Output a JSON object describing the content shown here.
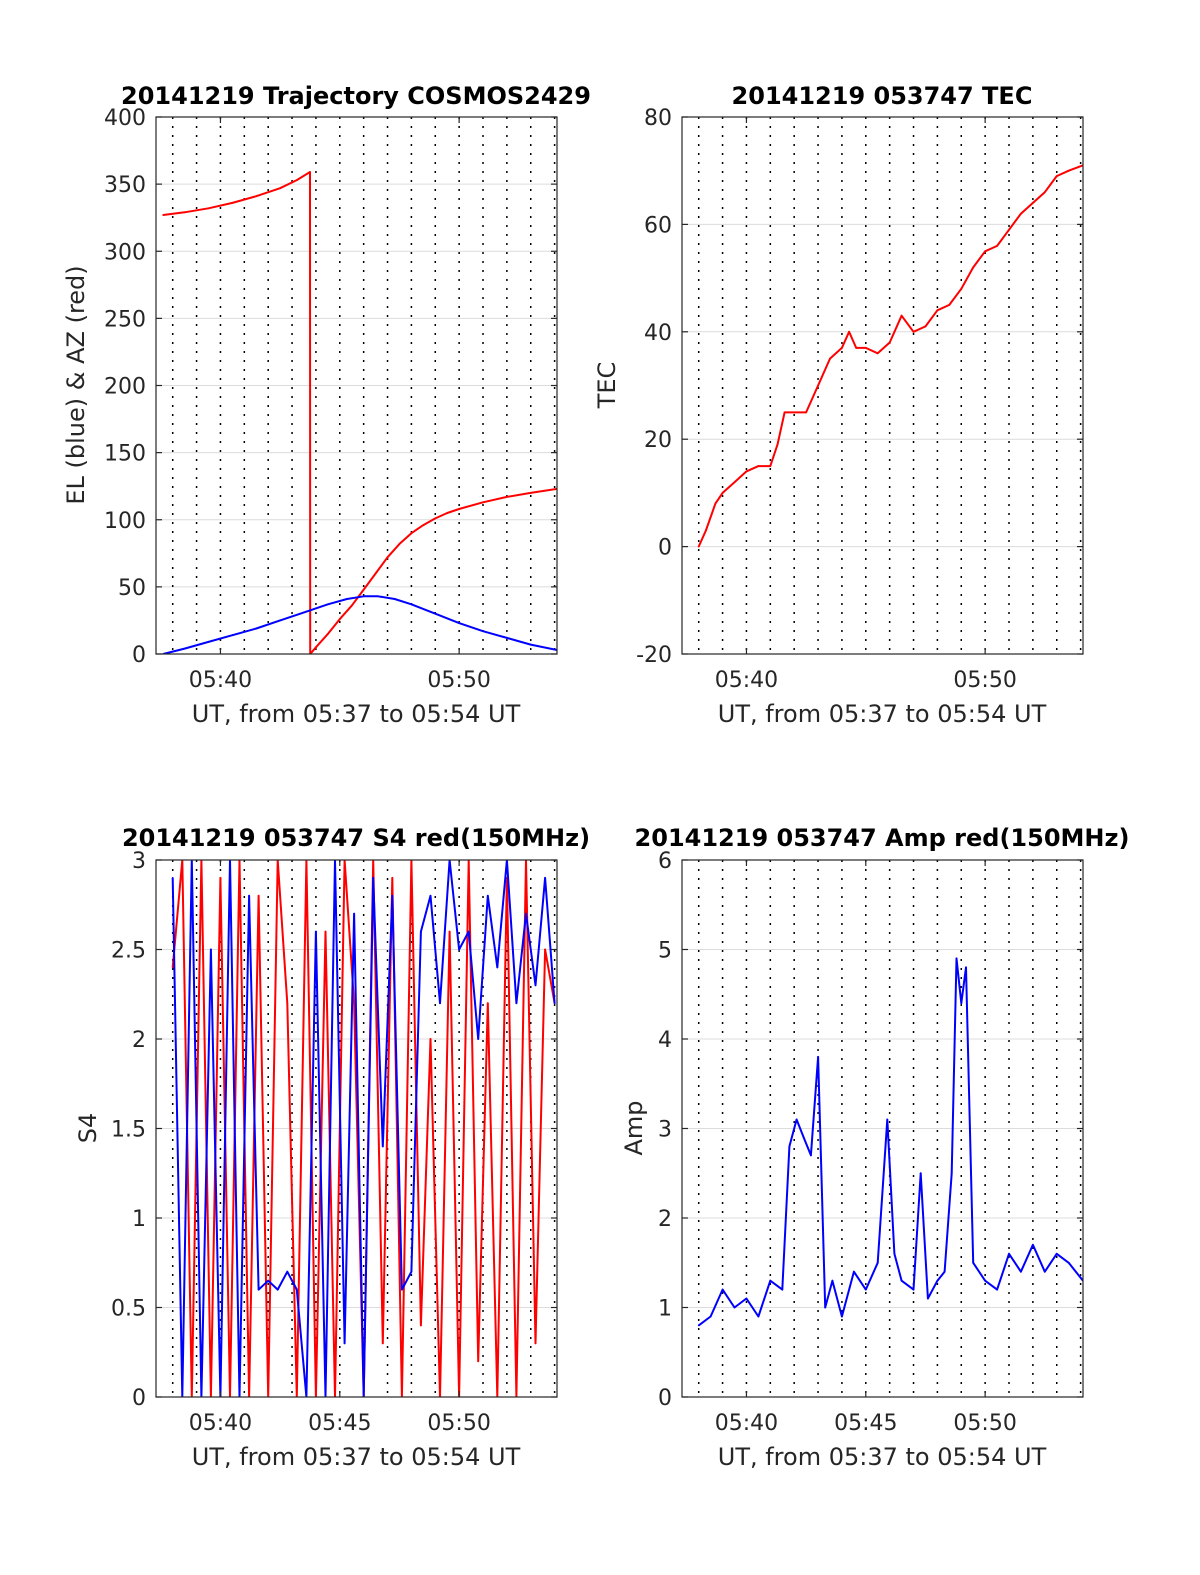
{
  "chart_data": [
    {
      "type": "line",
      "title": "20141219 Trajectory COSMOS2429",
      "xlabel": "UT, from 05:37 to 05:54 UT",
      "ylabel": "EL (blue) & AZ (red)",
      "xlim": [
        37.3,
        54.1
      ],
      "ylim": [
        0,
        400
      ],
      "xticks": [
        40,
        50
      ],
      "xticklabels": [
        "05:40",
        "05:50"
      ],
      "yticks": [
        0,
        50,
        100,
        150,
        200,
        250,
        300,
        350,
        400
      ],
      "grid": true,
      "colors": {
        "AZ": "#ff0000",
        "EL": "#0000ff"
      },
      "series": [
        {
          "x": [
            37.6,
            38.5,
            39.5,
            40.5,
            41.5,
            42.5,
            43.2,
            43.75,
            43.76,
            44.0,
            44.5,
            45.0,
            45.5,
            46.0,
            46.5,
            47.0,
            47.5,
            48.0,
            48.5,
            49.0,
            49.5,
            50.0,
            51.0,
            52.0,
            53.0,
            54.1
          ],
          "values": [
            327,
            329,
            332,
            336,
            341,
            347,
            353,
            359,
            0,
            5,
            15,
            26,
            36,
            48,
            60,
            72,
            82,
            90,
            96,
            101,
            105,
            108,
            113,
            117,
            120,
            123
          ]
        },
        {
          "x": [
            37.6,
            38.5,
            39.5,
            40.5,
            41.5,
            42.5,
            43.5,
            44.5,
            45.3,
            46.0,
            46.6,
            47.3,
            48.0,
            49.0,
            50.0,
            51.0,
            52.0,
            53.0,
            54.1
          ],
          "values": [
            0,
            4,
            9,
            14,
            19,
            25,
            31,
            37,
            41,
            43,
            43,
            41,
            37,
            30,
            23,
            17,
            12,
            7,
            3
          ]
        }
      ]
    },
    {
      "type": "line",
      "title": "20141219 053747 TEC",
      "xlabel": "UT, from 05:37 to 05:54 UT",
      "ylabel": "TEC",
      "xlim": [
        37.3,
        54.1
      ],
      "ylim": [
        -20,
        80
      ],
      "xticks": [
        40,
        50
      ],
      "xticklabels": [
        "05:40",
        "05:50"
      ],
      "yticks": [
        -20,
        0,
        20,
        40,
        60,
        80
      ],
      "grid": true,
      "colors": {
        "TEC": "#ff0000"
      },
      "series": [
        {
          "x": [
            38.0,
            38.3,
            38.7,
            39.0,
            39.5,
            40.0,
            40.5,
            41.0,
            41.3,
            41.6,
            42.0,
            42.5,
            43.0,
            43.5,
            44.0,
            44.3,
            44.6,
            45.0,
            45.5,
            46.0,
            46.5,
            47.0,
            47.5,
            48.0,
            48.5,
            49.0,
            49.5,
            50.0,
            50.5,
            51.0,
            51.5,
            52.0,
            52.5,
            53.0,
            53.5,
            54.1
          ],
          "values": [
            0,
            3,
            8,
            10,
            12,
            14,
            15,
            15,
            19,
            25,
            25,
            25,
            30,
            35,
            37,
            40,
            37,
            37,
            36,
            38,
            43,
            40,
            41,
            44,
            45,
            48,
            52,
            55,
            56,
            59,
            62,
            64,
            66,
            69,
            70,
            71
          ]
        }
      ]
    },
    {
      "type": "line",
      "title": "20141219 053747 S4 red(150MHz)",
      "xlabel": "UT, from 05:37 to 05:54 UT",
      "ylabel": "S4",
      "xlim": [
        37.3,
        54.1
      ],
      "ylim": [
        0,
        3
      ],
      "xticks": [
        40,
        45,
        50
      ],
      "xticklabels": [
        "05:40",
        "05:45",
        "05:50"
      ],
      "yticks": [
        0,
        0.5,
        1,
        1.5,
        2,
        2.5,
        3
      ],
      "grid": true,
      "colors": {
        "red": "#ff0000",
        "blue": "#0000ff"
      },
      "series": [
        {
          "x": [
            38.0,
            38.4,
            38.8,
            39.2,
            39.6,
            40.0,
            40.4,
            40.8,
            41.2,
            41.6,
            42.0,
            42.4,
            42.8,
            43.2,
            43.6,
            44.0,
            44.4,
            44.8,
            45.2,
            45.6,
            46.0,
            46.4,
            46.8,
            47.2,
            47.6,
            48.0,
            48.4,
            48.8,
            49.2,
            49.6,
            50.0,
            50.4,
            50.8,
            51.2,
            51.6,
            52.0,
            52.4,
            52.8,
            53.2,
            53.6,
            54.0
          ],
          "values": [
            2.4,
            3.0,
            0,
            3.0,
            0,
            2.9,
            0,
            3.0,
            0,
            2.8,
            0,
            3.0,
            2.2,
            0,
            3.0,
            0,
            2.6,
            0,
            3.0,
            2.2,
            0,
            3.0,
            0.3,
            2.9,
            0,
            3.0,
            0.4,
            2.0,
            0,
            2.6,
            0,
            3.0,
            0.2,
            2.2,
            0,
            2.9,
            0,
            3.0,
            0.3,
            2.5,
            2.2
          ]
        },
        {
          "x": [
            38.0,
            38.4,
            38.8,
            39.2,
            39.6,
            40.0,
            40.4,
            40.8,
            41.2,
            41.6,
            42.0,
            42.4,
            42.8,
            43.2,
            43.6,
            44.0,
            44.4,
            44.8,
            45.2,
            45.6,
            46.0,
            46.4,
            46.8,
            47.2,
            47.6,
            48.0,
            48.4,
            48.8,
            49.2,
            49.6,
            50.0,
            50.4,
            50.8,
            51.2,
            51.6,
            52.0,
            52.4,
            52.8,
            53.2,
            53.6,
            54.0
          ],
          "values": [
            2.9,
            0,
            3.0,
            0,
            2.5,
            0,
            3.0,
            0,
            2.8,
            0.6,
            0.65,
            0.6,
            0.7,
            0.6,
            0,
            2.6,
            0,
            3.0,
            0.3,
            2.7,
            0,
            2.9,
            1.4,
            2.8,
            0.6,
            0.7,
            2.6,
            2.8,
            2.2,
            3.0,
            2.5,
            2.6,
            2.0,
            2.8,
            2.4,
            3.0,
            2.2,
            2.7,
            2.3,
            2.9,
            2.2
          ]
        }
      ]
    },
    {
      "type": "line",
      "title": "20141219 053747 Amp red(150MHz)",
      "xlabel": "UT, from 05:37 to 05:54 UT",
      "ylabel": "Amp",
      "xlim": [
        37.3,
        54.1
      ],
      "ylim": [
        0,
        6
      ],
      "xticks": [
        40,
        45,
        50
      ],
      "xticklabels": [
        "05:40",
        "05:45",
        "05:50"
      ],
      "yticks": [
        0,
        1,
        2,
        3,
        4,
        5,
        6
      ],
      "grid": true,
      "colors": {
        "Amp": "#0000ff"
      },
      "series": [
        {
          "x": [
            38.0,
            38.5,
            39.0,
            39.5,
            40.0,
            40.5,
            41.0,
            41.5,
            41.8,
            42.1,
            42.4,
            42.7,
            43.0,
            43.3,
            43.6,
            44.0,
            44.5,
            45.0,
            45.5,
            45.9,
            46.2,
            46.5,
            47.0,
            47.3,
            47.6,
            48.0,
            48.3,
            48.6,
            48.8,
            49.0,
            49.2,
            49.5,
            50.0,
            50.5,
            51.0,
            51.5,
            52.0,
            52.5,
            53.0,
            53.5,
            54.1
          ],
          "values": [
            0.8,
            0.9,
            1.2,
            1.0,
            1.1,
            0.9,
            1.3,
            1.2,
            2.8,
            3.1,
            2.9,
            2.7,
            3.8,
            1.0,
            1.3,
            0.9,
            1.4,
            1.2,
            1.5,
            3.1,
            1.6,
            1.3,
            1.2,
            2.5,
            1.1,
            1.3,
            1.4,
            2.5,
            4.9,
            4.4,
            4.8,
            1.5,
            1.3,
            1.2,
            1.6,
            1.4,
            1.7,
            1.4,
            1.6,
            1.5,
            1.3
          ]
        }
      ]
    }
  ]
}
